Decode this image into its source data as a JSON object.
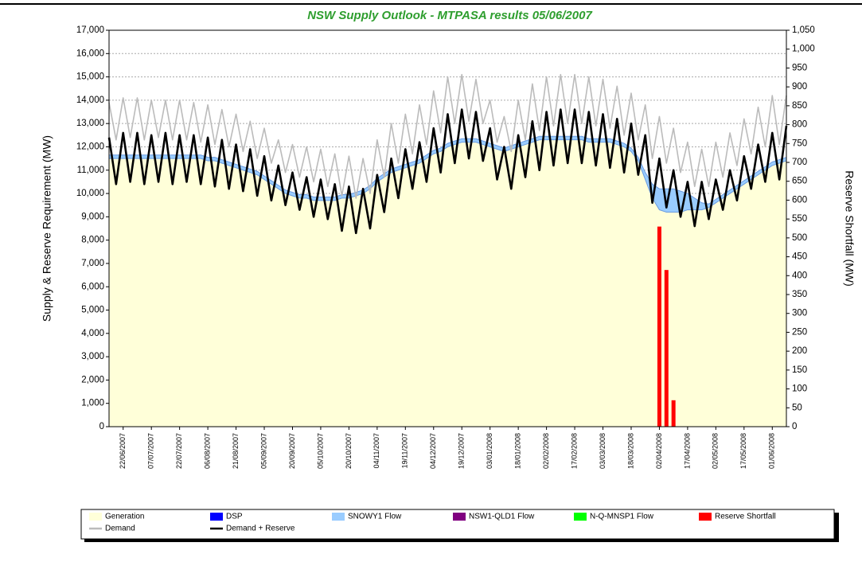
{
  "chart_data": {
    "type": "line",
    "title": "NSW Supply Outlook - MTPASA results 05/06/2007",
    "y_label": "Supply & Reserve Requirement (MW)",
    "y2_label": "Reserve Shortfall (MW)",
    "categories": [
      null,
      null,
      "22/06/2007",
      null,
      null,
      null,
      "07/07/2007",
      null,
      null,
      null,
      "22/07/2007",
      null,
      null,
      null,
      "06/08/2007",
      null,
      null,
      null,
      "21/08/2007",
      null,
      null,
      null,
      "05/09/2007",
      null,
      null,
      null,
      "20/09/2007",
      null,
      null,
      null,
      "05/10/2007",
      null,
      null,
      null,
      "20/10/2007",
      null,
      null,
      null,
      "04/11/2007",
      null,
      null,
      null,
      "19/11/2007",
      null,
      null,
      null,
      "04/12/2007",
      null,
      null,
      null,
      "19/12/2007",
      null,
      null,
      null,
      "03/01/2008",
      null,
      null,
      null,
      "18/01/2008",
      null,
      null,
      null,
      "02/02/2008",
      null,
      null,
      null,
      "17/02/2008",
      null,
      null,
      null,
      "03/03/2008",
      null,
      null,
      null,
      "18/03/2008",
      null,
      null,
      null,
      "02/04/2008",
      null,
      null,
      null,
      "17/04/2008",
      null,
      null,
      null,
      "02/05/2008",
      null,
      null,
      null,
      "17/05/2008",
      null,
      null,
      null,
      "01/06/2008",
      null,
      null
    ],
    "series": [
      {
        "name": "Generation",
        "color": "#ffffd9",
        "style": "area",
        "values": [
          11500,
          11500,
          11500,
          11500,
          11500,
          11500,
          11500,
          11500,
          11500,
          11500,
          11500,
          11500,
          11500,
          11500,
          11400,
          11400,
          11300,
          11200,
          11100,
          11000,
          10900,
          10800,
          10600,
          10400,
          10200,
          10000,
          9900,
          9800,
          9800,
          9700,
          9700,
          9700,
          9700,
          9800,
          9800,
          9900,
          10000,
          10200,
          10500,
          10700,
          10900,
          11000,
          11100,
          11200,
          11300,
          11500,
          11700,
          11800,
          12000,
          12100,
          12200,
          12200,
          12200,
          12100,
          12000,
          11900,
          11800,
          11900,
          12000,
          12100,
          12200,
          12300,
          12300,
          12300,
          12300,
          12300,
          12300,
          12300,
          12200,
          12200,
          12200,
          12200,
          12100,
          12000,
          11800,
          11400,
          10600,
          9800,
          9300,
          9200,
          9200,
          9200,
          9300,
          9300,
          9300,
          9400,
          9600,
          9800,
          10000,
          10200,
          10400,
          10600,
          10800,
          11000,
          11200,
          11300,
          11400
        ]
      },
      {
        "name": "DSP",
        "color": "#0000ff",
        "style": "area"
      },
      {
        "name": "SNOWY1 Flow",
        "color": "#99ccff",
        "style": "area",
        "values": [
          150,
          150,
          150,
          150,
          150,
          150,
          150,
          150,
          150,
          150,
          150,
          150,
          150,
          150,
          150,
          150,
          150,
          150,
          150,
          150,
          150,
          150,
          150,
          150,
          150,
          150,
          150,
          150,
          150,
          150,
          150,
          150,
          150,
          150,
          150,
          150,
          150,
          150,
          150,
          150,
          150,
          150,
          150,
          150,
          150,
          150,
          150,
          150,
          150,
          150,
          150,
          150,
          150,
          150,
          150,
          150,
          150,
          150,
          150,
          150,
          150,
          150,
          150,
          150,
          150,
          150,
          150,
          150,
          150,
          150,
          150,
          150,
          150,
          150,
          150,
          150,
          300,
          600,
          900,
          1000,
          1000,
          900,
          700,
          500,
          300,
          150,
          150,
          150,
          150,
          150,
          150,
          150,
          150,
          150,
          150,
          150,
          150
        ]
      },
      {
        "name": "NSW1-QLD1 Flow",
        "color": "#800080",
        "style": "area"
      },
      {
        "name": "N-Q-MNSP1 Flow",
        "color": "#00ff00",
        "style": "area"
      },
      {
        "name": "Reserve Shortfall",
        "color": "#ff0000",
        "style": "bar",
        "axis": "y2",
        "values": [
          0,
          0,
          0,
          0,
          0,
          0,
          0,
          0,
          0,
          0,
          0,
          0,
          0,
          0,
          0,
          0,
          0,
          0,
          0,
          0,
          0,
          0,
          0,
          0,
          0,
          0,
          0,
          0,
          0,
          0,
          0,
          0,
          0,
          0,
          0,
          0,
          0,
          0,
          0,
          0,
          0,
          0,
          0,
          0,
          0,
          0,
          0,
          0,
          0,
          0,
          0,
          0,
          0,
          0,
          0,
          0,
          0,
          0,
          0,
          0,
          0,
          0,
          0,
          0,
          0,
          0,
          0,
          0,
          0,
          0,
          0,
          0,
          0,
          0,
          0,
          0,
          0,
          0,
          530,
          415,
          70,
          0,
          0,
          0,
          0,
          0,
          0,
          0,
          0,
          0,
          0,
          0,
          0,
          0,
          0,
          0,
          0
        ]
      },
      {
        "name": "Demand",
        "color": "#bbbbbb",
        "style": "line",
        "values": [
          13900,
          12300,
          14100,
          12400,
          14100,
          12300,
          14000,
          12400,
          14000,
          12300,
          14000,
          12300,
          13900,
          12200,
          13800,
          12100,
          13600,
          12000,
          13400,
          11800,
          13100,
          11500,
          12800,
          11300,
          12300,
          10900,
          12100,
          10700,
          12000,
          10500,
          11900,
          10300,
          11700,
          9900,
          11600,
          9800,
          11500,
          10000,
          12300,
          10700,
          13000,
          11300,
          13400,
          11700,
          13800,
          12100,
          14400,
          12600,
          15000,
          13000,
          15100,
          13100,
          14900,
          13000,
          14000,
          12200,
          13300,
          11800,
          14000,
          12300,
          14700,
          12700,
          15000,
          12900,
          15100,
          13000,
          15100,
          13000,
          15000,
          12900,
          14900,
          12800,
          14600,
          12500,
          14300,
          12300,
          13800,
          11500,
          13300,
          11300,
          12800,
          10900,
          12200,
          10300,
          11900,
          10300,
          12200,
          10700,
          12600,
          11200,
          13200,
          11700,
          13700,
          12000,
          14200,
          12100,
          14200
        ]
      },
      {
        "name": "Demand + Reserve",
        "color": "#000000",
        "style": "line",
        "values": [
          12400,
          10400,
          12600,
          10500,
          12600,
          10400,
          12500,
          10500,
          12600,
          10400,
          12500,
          10500,
          12500,
          10400,
          12400,
          10300,
          12300,
          10200,
          12100,
          10100,
          11900,
          9900,
          11600,
          9700,
          11200,
          9500,
          10900,
          9300,
          10700,
          9000,
          10600,
          8900,
          10400,
          8400,
          10300,
          8300,
          10200,
          8500,
          10800,
          9200,
          11500,
          9800,
          11900,
          10200,
          12200,
          10500,
          12800,
          10900,
          13400,
          11300,
          13600,
          11500,
          13500,
          11400,
          12800,
          10600,
          12000,
          10200,
          12500,
          10700,
          13100,
          11000,
          13500,
          11200,
          13600,
          11300,
          13600,
          11300,
          13500,
          11200,
          13400,
          11100,
          13200,
          10900,
          13000,
          10800,
          12500,
          9600,
          11500,
          9400,
          11000,
          9000,
          10500,
          8600,
          10500,
          8900,
          10600,
          9300,
          11000,
          9700,
          11600,
          10200,
          12100,
          10500,
          12600,
          10600,
          12900
        ]
      }
    ],
    "ylim": [
      0,
      17000
    ],
    "yticks": [
      {
        "value": 0,
        "label": "0"
      },
      {
        "value": 1000,
        "label": "1,000"
      },
      {
        "value": 2000,
        "label": "2,000"
      },
      {
        "value": 3000,
        "label": "3,000"
      },
      {
        "value": 4000,
        "label": "4,000"
      },
      {
        "value": 5000,
        "label": "5,000"
      },
      {
        "value": 6000,
        "label": "6,000"
      },
      {
        "value": 7000,
        "label": "7,000"
      },
      {
        "value": 8000,
        "label": "8,000"
      },
      {
        "value": 9000,
        "label": "9,000"
      },
      {
        "value": 10000,
        "label": "10,000"
      },
      {
        "value": 11000,
        "label": "11,000"
      },
      {
        "value": 12000,
        "label": "12,000"
      },
      {
        "value": 13000,
        "label": "13,000"
      },
      {
        "value": 14000,
        "label": "14,000"
      },
      {
        "value": 15000,
        "label": "15,000"
      },
      {
        "value": 16000,
        "label": "16,000"
      },
      {
        "value": 17000,
        "label": "17,000"
      }
    ],
    "y2lim": [
      0,
      1050
    ],
    "y2ticks": [
      0,
      50,
      100,
      150,
      200,
      250,
      300,
      350,
      400,
      450,
      500,
      550,
      600,
      650,
      700,
      750,
      800,
      850,
      900,
      950,
      {
        "value": 1000,
        "label": "1,000"
      },
      {
        "value": 1050,
        "label": "1,050"
      }
    ],
    "grid": true,
    "legend": "bottom"
  }
}
